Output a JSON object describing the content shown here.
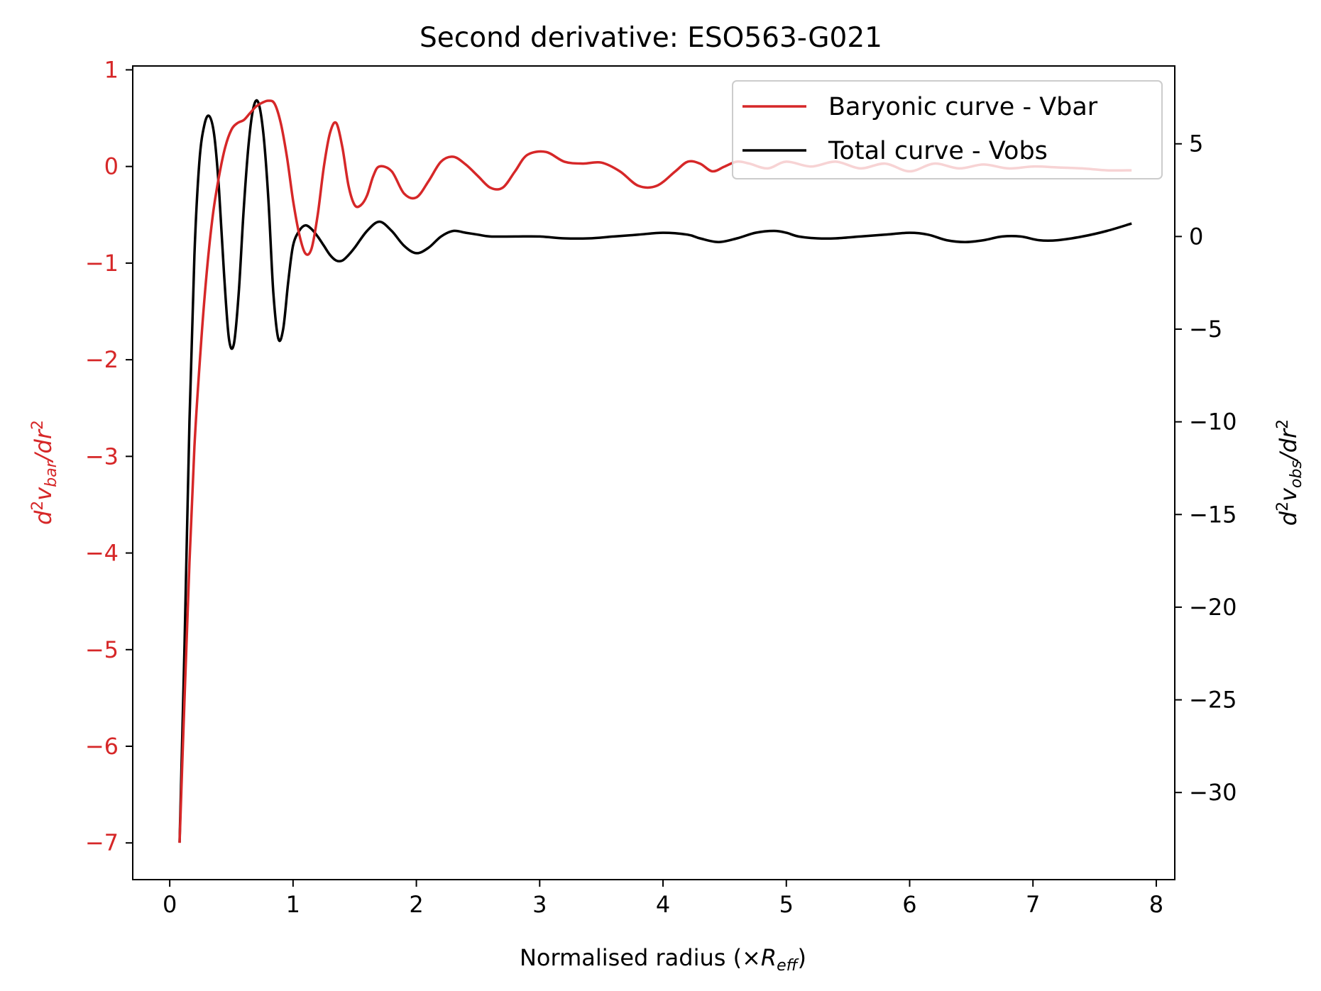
{
  "chart_data": {
    "type": "line",
    "title": "Second derivative: ESO563-G021",
    "xlabel_prefix": "Normalised radius (×",
    "xlabel_symbol": "R",
    "xlabel_sub": "eff",
    "xlabel_suffix": ")",
    "ylabel_left": {
      "pre": "d",
      "sup1": "2",
      "mid": "v",
      "sub": "bar",
      "post": "/dr",
      "sup2": "2"
    },
    "ylabel_right": {
      "pre": "d",
      "sup1": "2",
      "mid": "v",
      "sub": "obs",
      "post": "/dr",
      "sup2": "2"
    },
    "xlim": [
      -0.3,
      8.15
    ],
    "ylim_left": [
      -7.38,
      1.04
    ],
    "ylim_right": [
      -34.7,
      9.2
    ],
    "x_ticks": [
      0,
      1,
      2,
      3,
      4,
      5,
      6,
      7,
      8
    ],
    "x_tick_labels": [
      "0",
      "1",
      "2",
      "3",
      "4",
      "5",
      "6",
      "7",
      "8"
    ],
    "y_left_ticks": [
      1,
      0,
      -1,
      -2,
      -3,
      -4,
      -5,
      -6,
      -7
    ],
    "y_left_tick_labels": [
      "1",
      "0",
      "−1",
      "−2",
      "−3",
      "−4",
      "−5",
      "−6",
      "−7"
    ],
    "y_right_ticks": [
      5,
      0,
      -5,
      -10,
      -15,
      -20,
      -25,
      -30
    ],
    "y_right_tick_labels": [
      "5",
      "0",
      "−5",
      "−10",
      "−15",
      "−20",
      "−25",
      "−30"
    ],
    "legend_position": "top-right",
    "colors": {
      "vbar": "#d62728",
      "vobs": "#000000",
      "left_axis": "#d62728",
      "right_axis": "#000000"
    },
    "series": [
      {
        "name": "Baryonic curve - Vbar",
        "axis": "left",
        "x": [
          0.08,
          0.12,
          0.16,
          0.2,
          0.25,
          0.3,
          0.35,
          0.4,
          0.45,
          0.5,
          0.55,
          0.6,
          0.65,
          0.7,
          0.75,
          0.8,
          0.85,
          0.9,
          0.95,
          1.0,
          1.05,
          1.1,
          1.15,
          1.2,
          1.25,
          1.3,
          1.35,
          1.4,
          1.45,
          1.5,
          1.55,
          1.6,
          1.65,
          1.7,
          1.8,
          1.9,
          2.0,
          2.1,
          2.2,
          2.3,
          2.4,
          2.5,
          2.6,
          2.7,
          2.8,
          2.9,
          3.05,
          3.2,
          3.35,
          3.5,
          3.65,
          3.8,
          3.95,
          4.1,
          4.2,
          4.3,
          4.4,
          4.5,
          4.6,
          4.7,
          4.85,
          5.0,
          5.2,
          5.4,
          5.6,
          5.8,
          6.0,
          6.2,
          6.4,
          6.6,
          6.8,
          7.0,
          7.2,
          7.4,
          7.6,
          7.8
        ],
        "y": [
          -7.0,
          -5.5,
          -4.1,
          -2.9,
          -1.9,
          -1.1,
          -0.5,
          -0.1,
          0.2,
          0.38,
          0.45,
          0.48,
          0.55,
          0.62,
          0.66,
          0.68,
          0.65,
          0.45,
          0.1,
          -0.35,
          -0.7,
          -0.9,
          -0.85,
          -0.5,
          0.0,
          0.35,
          0.45,
          0.2,
          -0.2,
          -0.4,
          -0.4,
          -0.3,
          -0.1,
          0.0,
          -0.05,
          -0.28,
          -0.32,
          -0.15,
          0.05,
          0.1,
          0.02,
          -0.1,
          -0.22,
          -0.22,
          -0.05,
          0.12,
          0.15,
          0.05,
          0.03,
          0.04,
          -0.05,
          -0.2,
          -0.2,
          -0.05,
          0.05,
          0.03,
          -0.05,
          0.0,
          0.05,
          0.03,
          -0.02,
          0.05,
          0.0,
          0.05,
          -0.02,
          0.03,
          -0.05,
          0.03,
          -0.02,
          0.02,
          -0.02,
          0.0,
          -0.01,
          -0.02,
          -0.04,
          -0.04
        ]
      },
      {
        "name": "Total curve - Vobs",
        "axis": "right",
        "x": [
          0.08,
          0.12,
          0.16,
          0.2,
          0.24,
          0.28,
          0.32,
          0.36,
          0.4,
          0.44,
          0.48,
          0.52,
          0.56,
          0.6,
          0.64,
          0.68,
          0.72,
          0.76,
          0.8,
          0.84,
          0.88,
          0.92,
          0.96,
          1.0,
          1.05,
          1.1,
          1.15,
          1.2,
          1.25,
          1.3,
          1.35,
          1.4,
          1.45,
          1.5,
          1.6,
          1.7,
          1.8,
          1.9,
          2.0,
          2.1,
          2.2,
          2.3,
          2.4,
          2.5,
          2.6,
          2.8,
          3.0,
          3.2,
          3.4,
          3.6,
          3.8,
          4.0,
          4.2,
          4.3,
          4.45,
          4.6,
          4.75,
          4.9,
          5.0,
          5.1,
          5.25,
          5.4,
          5.6,
          5.8,
          6.0,
          6.15,
          6.3,
          6.45,
          6.6,
          6.75,
          6.9,
          7.05,
          7.2,
          7.4,
          7.6,
          7.8
        ],
        "y": [
          -32.7,
          -22.0,
          -10.0,
          -1.0,
          4.0,
          6.0,
          6.5,
          5.5,
          2.5,
          -2.0,
          -5.5,
          -5.8,
          -3.0,
          1.5,
          5.0,
          7.0,
          7.2,
          5.5,
          2.0,
          -3.0,
          -5.5,
          -5.0,
          -2.5,
          -0.5,
          0.3,
          0.6,
          0.4,
          0.0,
          -0.5,
          -1.0,
          -1.3,
          -1.3,
          -1.0,
          -0.6,
          0.3,
          0.8,
          0.3,
          -0.5,
          -0.9,
          -0.6,
          0.0,
          0.3,
          0.2,
          0.1,
          0.0,
          0.0,
          0.0,
          -0.1,
          -0.1,
          0.0,
          0.1,
          0.2,
          0.1,
          -0.1,
          -0.3,
          -0.1,
          0.2,
          0.3,
          0.2,
          0.0,
          -0.1,
          -0.1,
          0.0,
          0.1,
          0.2,
          0.1,
          -0.2,
          -0.3,
          -0.2,
          0.0,
          0.0,
          -0.2,
          -0.2,
          0.0,
          0.3,
          0.7
        ]
      }
    ]
  }
}
